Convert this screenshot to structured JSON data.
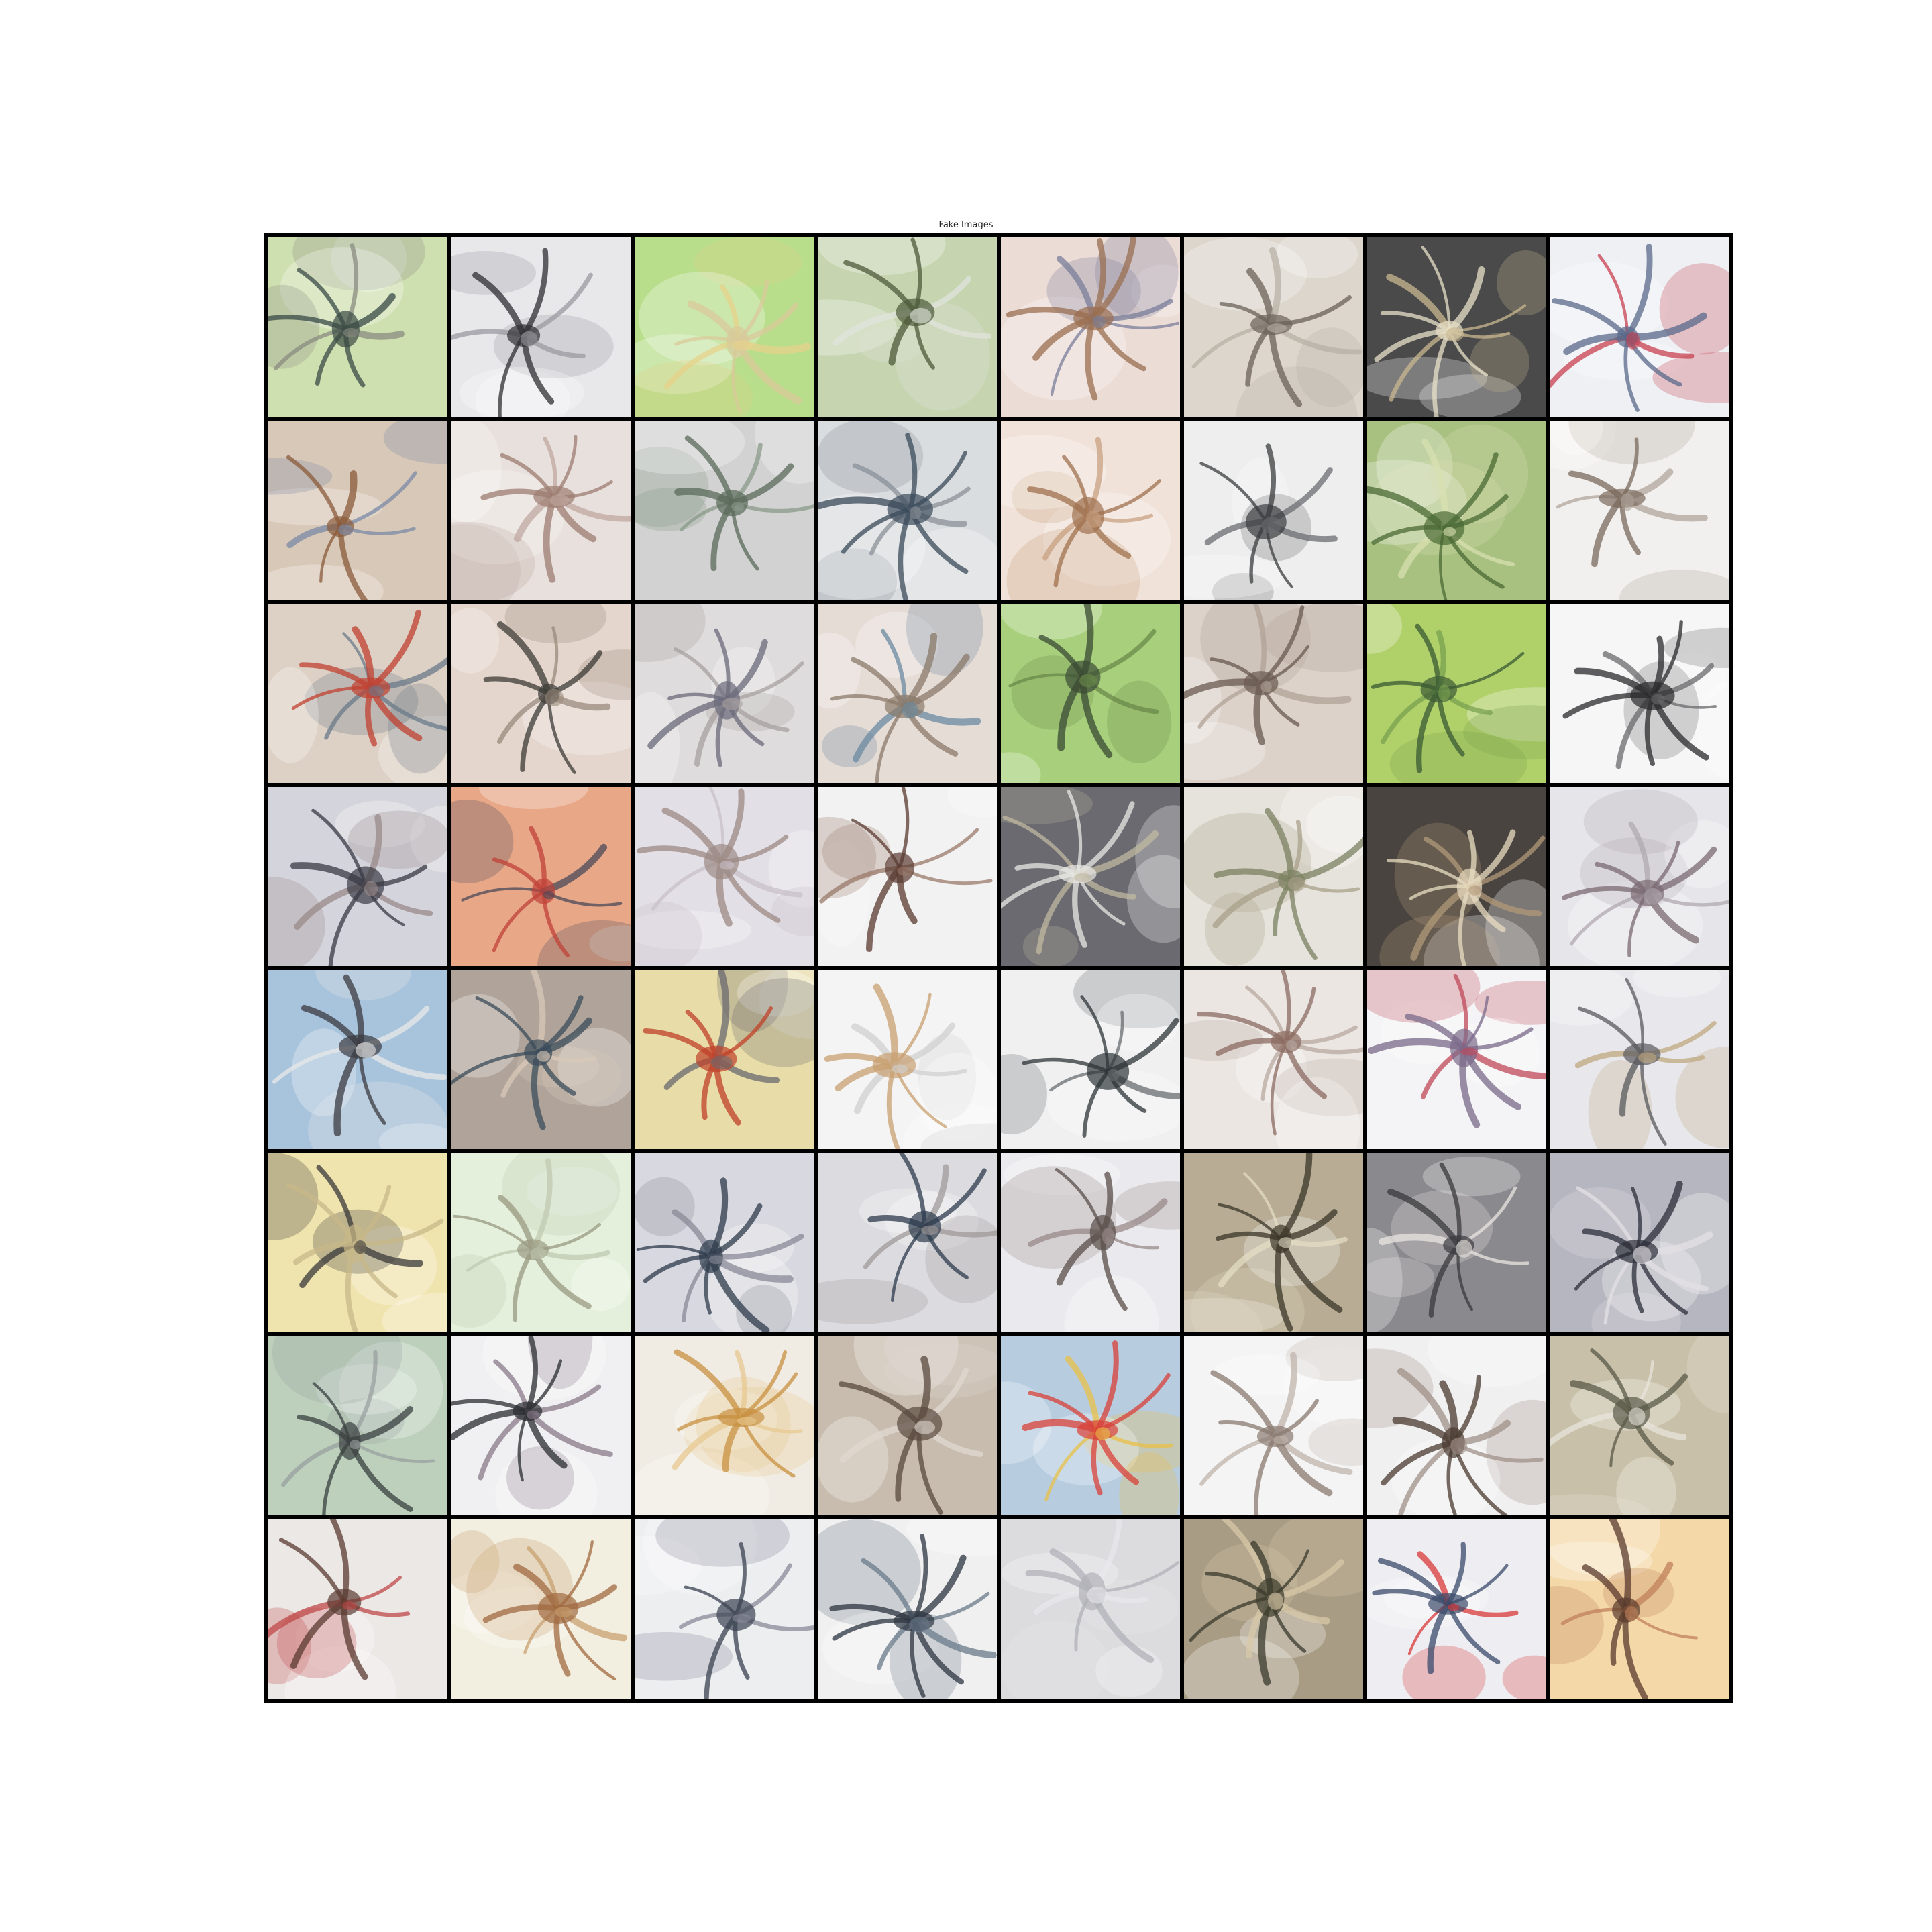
{
  "figure": {
    "title": "Fake Images",
    "rows": 8,
    "cols": 8
  },
  "tiles": [
    {
      "bg": "#cfe0b0",
      "c1": "#3a4a45",
      "c2": "#8a8c80"
    },
    {
      "bg": "#e8e8ea",
      "c1": "#2f2f33",
      "c2": "#9a9aa0"
    },
    {
      "bg": "#b8de8c",
      "c1": "#d9c99a",
      "c2": "#e6d28a"
    },
    {
      "bg": "#c7d4b0",
      "c1": "#4d5a3a",
      "c2": "#e0e4dc"
    },
    {
      "bg": "#ecdcd6",
      "c1": "#9a6e50",
      "c2": "#7a7e9a"
    },
    {
      "bg": "#dcd6cc",
      "c1": "#6b6258",
      "c2": "#b7b0a6"
    },
    {
      "bg": "#4a4a4a",
      "c1": "#e8e0c8",
      "c2": "#c9b890"
    },
    {
      "bg": "#eef0f4",
      "c1": "#5a6a8a",
      "c2": "#c84050"
    },
    {
      "bg": "#d8c8b8",
      "c1": "#8a5a3a",
      "c2": "#7a8aa6"
    },
    {
      "bg": "#e8e0dc",
      "c1": "#9c7c70",
      "c2": "#c0a8a0"
    },
    {
      "bg": "#d2d2d2",
      "c1": "#5a6a5a",
      "c2": "#8a9a8a"
    },
    {
      "bg": "#dadde0",
      "c1": "#3a4a5a",
      "c2": "#8a9098"
    },
    {
      "bg": "#f0e2d8",
      "c1": "#a0704e",
      "c2": "#c8a080"
    },
    {
      "bg": "#eeeeee",
      "c1": "#3a3c3e",
      "c2": "#6a6c70"
    },
    {
      "bg": "#a8c080",
      "c1": "#4a6a34",
      "c2": "#d8e0b0"
    },
    {
      "bg": "#f2f0ee",
      "c1": "#7a6a5c",
      "c2": "#b0a69c"
    },
    {
      "bg": "#ddd0c4",
      "c1": "#c04030",
      "c2": "#6a7a8a"
    },
    {
      "bg": "#e4d6cc",
      "c1": "#3c3a36",
      "c2": "#9a8a7c"
    },
    {
      "bg": "#dedcdc",
      "c1": "#6a6a7a",
      "c2": "#a8a0a0"
    },
    {
      "bg": "#e6dcd6",
      "c1": "#8a7a6a",
      "c2": "#6a8aa0"
    },
    {
      "bg": "#a8d07c",
      "c1": "#3a4a34",
      "c2": "#6a8a4a"
    },
    {
      "bg": "#dcd2ca",
      "c1": "#6a5a50",
      "c2": "#b0a296"
    },
    {
      "bg": "#b0d06a",
      "c1": "#3a5a34",
      "c2": "#7aa050"
    },
    {
      "bg": "#f6f6f6",
      "c1": "#2a2a2c",
      "c2": "#6a6a6e"
    },
    {
      "bg": "#d4d4dc",
      "c1": "#3a3a44",
      "c2": "#9a8a8a"
    },
    {
      "bg": "#e8a888",
      "c1": "#c04038",
      "c2": "#4a4a5a"
    },
    {
      "bg": "#e2e0e6",
      "c1": "#9c8a84",
      "c2": "#c8c0c8"
    },
    {
      "bg": "#f2f2f2",
      "c1": "#5a3a30",
      "c2": "#9a7a6a"
    },
    {
      "bg": "#6a6a70",
      "c1": "#e8e8e4",
      "c2": "#c0b8a0"
    },
    {
      "bg": "#e6e2dc",
      "c1": "#7a8060",
      "c2": "#a8a08a"
    },
    {
      "bg": "#4a4440",
      "c1": "#e8dcc0",
      "c2": "#b09878"
    },
    {
      "bg": "#e6e6ea",
      "c1": "#7a6a70",
      "c2": "#b0a8b0"
    },
    {
      "bg": "#a8c4dc",
      "c1": "#3a3a40",
      "c2": "#e8e8e8"
    },
    {
      "bg": "#b0a49a",
      "c1": "#3a4c5a",
      "c2": "#d8c8b8"
    },
    {
      "bg": "#e8dca8",
      "c1": "#c04028",
      "c2": "#6a6a70"
    },
    {
      "bg": "#f4f4f4",
      "c1": "#c8a070",
      "c2": "#d0d0d0"
    },
    {
      "bg": "#f0f0f0",
      "c1": "#2e3438",
      "c2": "#6a6e72"
    },
    {
      "bg": "#ece6e2",
      "c1": "#8a6a60",
      "c2": "#b8a8a0"
    },
    {
      "bg": "#f4f4f6",
      "c1": "#7a6a8a",
      "c2": "#c04858"
    },
    {
      "bg": "#e8e8ec",
      "c1": "#5a5a5e",
      "c2": "#c0a880"
    },
    {
      "bg": "#f0e4ae",
      "c1": "#c8b888",
      "c2": "#3a3a3a"
    },
    {
      "bg": "#e4f0dc",
      "c1": "#9a9a80",
      "c2": "#c0c8b0"
    },
    {
      "bg": "#d8d8e0",
      "c1": "#2e3a4a",
      "c2": "#8a8a98"
    },
    {
      "bg": "#dcdce0",
      "c1": "#2c3a4c",
      "c2": "#a09a9a"
    },
    {
      "bg": "#eaeaee",
      "c1": "#5a4e4a",
      "c2": "#9a8a8a"
    },
    {
      "bg": "#b8ac94",
      "c1": "#3a3628",
      "c2": "#e4dcc4"
    },
    {
      "bg": "#8a8a8e",
      "c1": "#3a3a3e",
      "c2": "#e8e4e0"
    },
    {
      "bg": "#b6b6c0",
      "c1": "#2a2c38",
      "c2": "#e4e0e4"
    },
    {
      "bg": "#bcd0bc",
      "c1": "#3a4040",
      "c2": "#9aa0a0"
    },
    {
      "bg": "#f0f0f2",
      "c1": "#2a2c30",
      "c2": "#8a7a8a"
    },
    {
      "bg": "#f0ece4",
      "c1": "#c89040",
      "c2": "#e8c890"
    },
    {
      "bg": "#c8bcae",
      "c1": "#5a4a3e",
      "c2": "#e0d8d0"
    },
    {
      "bg": "#b8cce0",
      "c1": "#d84038",
      "c2": "#e8c048"
    },
    {
      "bg": "#f4f4f4",
      "c1": "#8a7a70",
      "c2": "#c0b4ac"
    },
    {
      "bg": "#f0f0f0",
      "c1": "#4a3a30",
      "c2": "#a09088"
    },
    {
      "bg": "#c8c0a8",
      "c1": "#5a5a48",
      "c2": "#e8e4dc"
    },
    {
      "bg": "#ece8e6",
      "c1": "#5a3a30",
      "c2": "#c04848"
    },
    {
      "bg": "#f2eee0",
      "c1": "#a06a40",
      "c2": "#c8a070"
    },
    {
      "bg": "#eceef0",
      "c1": "#3a4250",
      "c2": "#8a8a9a"
    },
    {
      "bg": "#f0f0f0",
      "c1": "#2c3440",
      "c2": "#6a7a8a"
    },
    {
      "bg": "#dcdcde",
      "c1": "#b0b0b8",
      "c2": "#e8e8ec"
    },
    {
      "bg": "#a89c84",
      "c1": "#3a3a2c",
      "c2": "#d8c8a8"
    },
    {
      "bg": "#eeeef2",
      "c1": "#3a4a6a",
      "c2": "#d83838"
    },
    {
      "bg": "#f4d8a8",
      "c1": "#5a3a2c",
      "c2": "#c0805a"
    }
  ]
}
